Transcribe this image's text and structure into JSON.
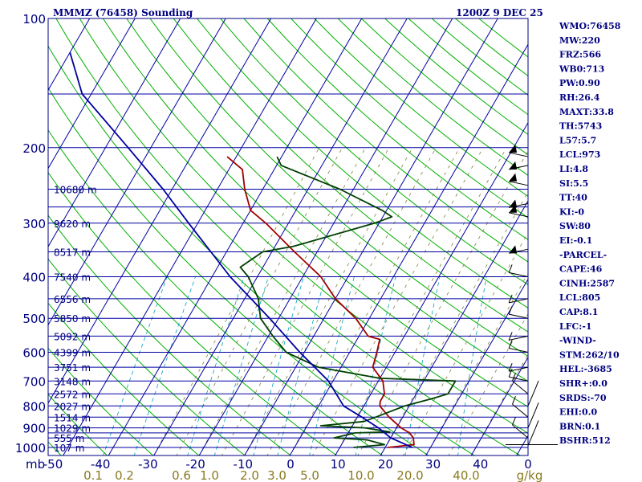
{
  "header": {
    "station": "MMMZ (76458) Sounding",
    "valid_time": "1200Z  9 DEC 25"
  },
  "indices": [
    "WMO:76458",
    "MW:220",
    "FRZ:566",
    "WB0:713",
    "PW:0.90",
    "RH:26.4",
    "MAXT:33.8",
    "TH:5743",
    "L57:5.7",
    "LCL:973",
    "LI:4.8",
    "SI:5.5",
    "TT:40",
    "KI:-0",
    "SW:80",
    "EI:-0.1",
    "-PARCEL-",
    "CAPE:46",
    "CINH:2587",
    "LCL:805",
    "CAP:8.1",
    "LFC:-1",
    "-WIND-",
    "STM:262/10",
    "HEL:-3685",
    "SHR+:0.0",
    "SRDS:-70",
    "EHI:0.0",
    "BRN:0.1",
    "BSHR:512"
  ],
  "colors": {
    "frame": "#000080",
    "isobar": "#0000a0",
    "isotherm": "#0000a0",
    "dry_adiabat": "#00b000",
    "moist_adiabat": "#808040",
    "mixing_ratio": "#00a0c0",
    "temperature": "#a00000",
    "dewpoint": "#004000",
    "parcel": "#0000a0",
    "wind": "#000000"
  },
  "chart_data": {
    "type": "line",
    "chart_kind": "skew-T log-P sounding",
    "y_axis": {
      "label": "mb",
      "scale": "log",
      "range": [
        1000,
        100
      ],
      "tick_labels": [
        "100",
        "200",
        "300",
        "400",
        "500",
        "600",
        "700",
        "800",
        "900",
        "1000"
      ]
    },
    "x_axis": {
      "range": [
        -50,
        50
      ],
      "tick_labels": [
        "-50",
        "-40",
        "-30",
        "-20",
        "-10",
        "0",
        "10",
        "20",
        "30",
        "40",
        "0"
      ]
    },
    "mixing_ratio_labels_gkg": [
      "0.1",
      "0.2",
      "0.6",
      "1.0",
      "2.0",
      "3.0",
      "5.0",
      "10.0",
      "20.0",
      "40.0"
    ],
    "mixing_ratio_unit": "g/kg",
    "isobars_mb": [
      100,
      150,
      200,
      250,
      275,
      300,
      350,
      400,
      450,
      500,
      550,
      600,
      650,
      700,
      750,
      800,
      850,
      900,
      925,
      950,
      1000
    ],
    "height_labels": [
      {
        "p": 250,
        "label": "10680 m"
      },
      {
        "p": 300,
        "label": "9620 m"
      },
      {
        "p": 350,
        "label": "8517 m"
      },
      {
        "p": 400,
        "label": "7540 m"
      },
      {
        "p": 450,
        "label": "6556 m"
      },
      {
        "p": 500,
        "label": "5850 m"
      },
      {
        "p": 550,
        "label": "5092 m"
      },
      {
        "p": 600,
        "label": "4399 m"
      },
      {
        "p": 650,
        "label": "3751 m"
      },
      {
        "p": 700,
        "label": "3148 m"
      },
      {
        "p": 750,
        "label": "2572 m"
      },
      {
        "p": 800,
        "label": "2027 m"
      },
      {
        "p": 850,
        "label": "1514 m"
      },
      {
        "p": 900,
        "label": "1029 m"
      },
      {
        "p": 950,
        "label": "555 m"
      },
      {
        "p": 1000,
        "label": "107 m"
      }
    ],
    "series": [
      {
        "key": "temperature",
        "points": [
          [
            1000,
            20.5
          ],
          [
            985,
            26
          ],
          [
            950,
            25
          ],
          [
            925,
            23.5
          ],
          [
            900,
            21
          ],
          [
            850,
            17
          ],
          [
            800,
            13.5
          ],
          [
            780,
            13
          ],
          [
            750,
            13
          ],
          [
            700,
            11
          ],
          [
            650,
            7
          ],
          [
            600,
            6
          ],
          [
            560,
            5
          ],
          [
            550,
            2
          ],
          [
            500,
            -3
          ],
          [
            450,
            -10
          ],
          [
            400,
            -16
          ],
          [
            350,
            -25
          ],
          [
            300,
            -35
          ],
          [
            280,
            -40
          ],
          [
            250,
            -44
          ],
          [
            225,
            -47
          ],
          [
            210,
            -52
          ]
        ]
      },
      {
        "key": "dewpoint",
        "points": [
          [
            1000,
            13
          ],
          [
            985,
            19.5
          ],
          [
            960,
            15
          ],
          [
            950,
            7.5
          ],
          [
            925,
            11.5
          ],
          [
            920,
            19
          ],
          [
            900,
            13
          ],
          [
            890,
            3
          ],
          [
            870,
            12
          ],
          [
            850,
            14
          ],
          [
            800,
            19
          ],
          [
            770,
            24
          ],
          [
            750,
            27
          ],
          [
            700,
            27
          ],
          [
            690,
            10
          ],
          [
            650,
            -5
          ],
          [
            600,
            -14
          ],
          [
            550,
            -19
          ],
          [
            500,
            -24
          ],
          [
            450,
            -27
          ],
          [
            400,
            -32
          ],
          [
            380,
            -35
          ],
          [
            350,
            -32
          ],
          [
            340,
            -26
          ],
          [
            300,
            -11
          ],
          [
            290,
            -8
          ],
          [
            280,
            -11
          ],
          [
            250,
            -23
          ],
          [
            220,
            -39
          ],
          [
            210,
            -41
          ]
        ]
      },
      {
        "key": "parcel",
        "points": [
          [
            1000,
            26
          ],
          [
            950,
            20
          ],
          [
            900,
            16
          ],
          [
            850,
            11
          ],
          [
            800,
            5.5
          ],
          [
            700,
            -1
          ],
          [
            600,
            -11
          ],
          [
            500,
            -22
          ],
          [
            400,
            -36
          ],
          [
            300,
            -52
          ],
          [
            250,
            -62
          ],
          [
            200,
            -75
          ],
          [
            150,
            -92
          ],
          [
            120,
            -100
          ]
        ]
      }
    ],
    "wind_barbs_mb": [
      210,
      220,
      245,
      270,
      290,
      345,
      400,
      450,
      500,
      550,
      600,
      650,
      700,
      750,
      800,
      850,
      900,
      950,
      990
    ]
  }
}
